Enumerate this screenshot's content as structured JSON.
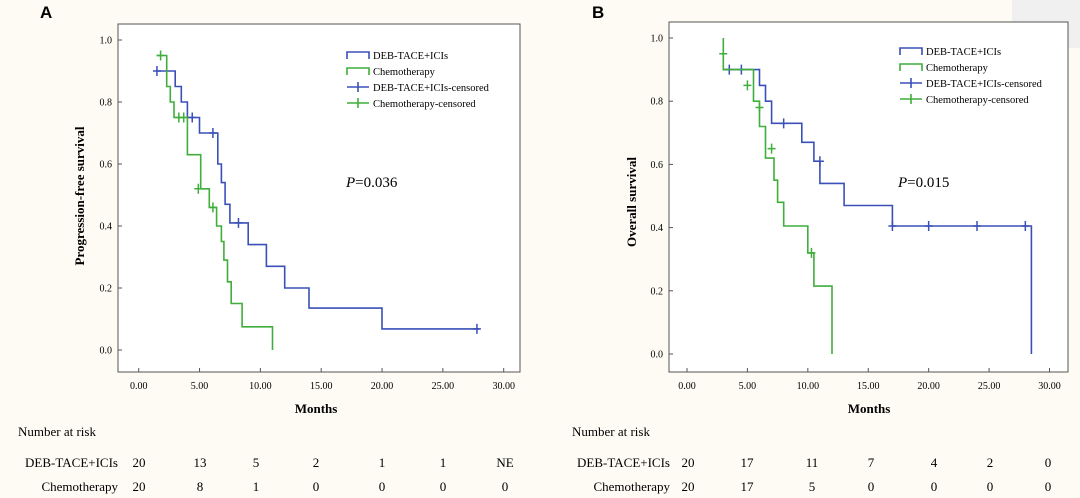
{
  "chart_data": [
    {
      "type": "line",
      "panel_label": "A",
      "ylabel": "Progression-free survival",
      "xlabel": "Months",
      "x_ticks": [
        "0.00",
        "5.00",
        "10.00",
        "15.00",
        "20.00",
        "25.00",
        "30.00"
      ],
      "y_ticks": [
        "0.0",
        "0.2",
        "0.4",
        "0.6",
        "0.8",
        "1.0"
      ],
      "xlim": [
        -1,
        31
      ],
      "ylim": [
        0,
        1
      ],
      "p_prefix": "P",
      "p_value": "=0.036",
      "legend_position": "top-right",
      "series": [
        {
          "name": "DEB-TACE+ICIs",
          "color": "#3a50b8",
          "curve": [
            [
              1.5,
              0.9
            ],
            [
              3,
              0.9
            ],
            [
              3,
              0.85
            ],
            [
              3.5,
              0.85
            ],
            [
              3.5,
              0.8
            ],
            [
              4,
              0.8
            ],
            [
              4,
              0.75
            ],
            [
              5,
              0.75
            ],
            [
              5,
              0.7
            ],
            [
              6.5,
              0.7
            ],
            [
              6.5,
              0.6
            ],
            [
              6.8,
              0.6
            ],
            [
              6.8,
              0.54
            ],
            [
              7.1,
              0.54
            ],
            [
              7.1,
              0.47
            ],
            [
              7.5,
              0.47
            ],
            [
              7.5,
              0.41
            ],
            [
              9,
              0.41
            ],
            [
              9,
              0.34
            ],
            [
              10.5,
              0.34
            ],
            [
              10.5,
              0.27
            ],
            [
              12,
              0.27
            ],
            [
              12,
              0.2
            ],
            [
              14,
              0.2
            ],
            [
              14,
              0.135
            ],
            [
              20,
              0.135
            ],
            [
              20,
              0.068
            ],
            [
              28,
              0.068
            ]
          ],
          "censored": [
            [
              1.5,
              0.9
            ],
            [
              4.4,
              0.75
            ],
            [
              6.1,
              0.7
            ],
            [
              8.2,
              0.41
            ],
            [
              27.8,
              0.068
            ]
          ]
        },
        {
          "name": "Chemotherapy",
          "color": "#3fae3a",
          "curve": [
            [
              1.5,
              0.95
            ],
            [
              2.3,
              0.95
            ],
            [
              2.3,
              0.85
            ],
            [
              2.6,
              0.85
            ],
            [
              2.6,
              0.8
            ],
            [
              2.9,
              0.8
            ],
            [
              2.9,
              0.75
            ],
            [
              4,
              0.75
            ],
            [
              4,
              0.63
            ],
            [
              5.1,
              0.63
            ],
            [
              5.1,
              0.52
            ],
            [
              5.8,
              0.52
            ],
            [
              5.8,
              0.46
            ],
            [
              6.4,
              0.46
            ],
            [
              6.4,
              0.4
            ],
            [
              6.8,
              0.4
            ],
            [
              6.8,
              0.35
            ],
            [
              7,
              0.35
            ],
            [
              7,
              0.29
            ],
            [
              7.3,
              0.29
            ],
            [
              7.3,
              0.22
            ],
            [
              7.6,
              0.22
            ],
            [
              7.6,
              0.15
            ],
            [
              8.5,
              0.15
            ],
            [
              8.5,
              0.075
            ],
            [
              11,
              0.075
            ],
            [
              11,
              0
            ]
          ],
          "censored": [
            [
              1.8,
              0.95
            ],
            [
              3.3,
              0.75
            ],
            [
              3.7,
              0.75
            ],
            [
              4.9,
              0.52
            ],
            [
              6.1,
              0.46
            ]
          ]
        }
      ],
      "legend": [
        "DEB-TACE+ICIs",
        "Chemotherapy",
        "DEB-TACE+ICIs-censored",
        "Chemotherapy-censored"
      ],
      "risk_table": {
        "title": "Number at risk",
        "rows": [
          {
            "label": "DEB-TACE+ICIs",
            "values": [
              "20",
              "13",
              "5",
              "2",
              "1",
              "1",
              "NE"
            ]
          },
          {
            "label": "Chemotherapy",
            "values": [
              "20",
              "8",
              "1",
              "0",
              "0",
              "0",
              "0"
            ]
          }
        ]
      }
    },
    {
      "type": "line",
      "panel_label": "B",
      "ylabel": "Overall survival",
      "xlabel": "Months",
      "x_ticks": [
        "0.00",
        "5.00",
        "10.00",
        "15.00",
        "20.00",
        "25.00",
        "30.00"
      ],
      "y_ticks": [
        "0.0",
        "0.2",
        "0.4",
        "0.6",
        "0.8",
        "1.0"
      ],
      "xlim": [
        -1,
        31
      ],
      "ylim": [
        0,
        1
      ],
      "p_prefix": "P",
      "p_value": "=0.015",
      "legend_position": "top-right",
      "series": [
        {
          "name": "DEB-TACE+ICIs",
          "color": "#3a50b8",
          "curve": [
            [
              3,
              0.9
            ],
            [
              6,
              0.9
            ],
            [
              6,
              0.85
            ],
            [
              6.5,
              0.85
            ],
            [
              6.5,
              0.8
            ],
            [
              7,
              0.8
            ],
            [
              7,
              0.73
            ],
            [
              9.5,
              0.73
            ],
            [
              9.5,
              0.67
            ],
            [
              10.5,
              0.67
            ],
            [
              10.5,
              0.61
            ],
            [
              11,
              0.61
            ],
            [
              11,
              0.54
            ],
            [
              13,
              0.54
            ],
            [
              13,
              0.47
            ],
            [
              17,
              0.47
            ],
            [
              17,
              0.405
            ],
            [
              28.5,
              0.405
            ],
            [
              28.5,
              0
            ]
          ],
          "censored": [
            [
              3.5,
              0.9
            ],
            [
              4.5,
              0.9
            ],
            [
              8,
              0.73
            ],
            [
              11,
              0.61
            ],
            [
              17,
              0.405
            ],
            [
              20,
              0.405
            ],
            [
              24,
              0.405
            ],
            [
              28,
              0.405
            ]
          ]
        },
        {
          "name": "Chemotherapy",
          "color": "#3fae3a",
          "curve": [
            [
              3,
              1
            ],
            [
              3,
              0.9
            ],
            [
              5.5,
              0.9
            ],
            [
              5.5,
              0.8
            ],
            [
              6,
              0.8
            ],
            [
              6,
              0.72
            ],
            [
              6.5,
              0.72
            ],
            [
              6.5,
              0.62
            ],
            [
              7.2,
              0.62
            ],
            [
              7.2,
              0.55
            ],
            [
              7.5,
              0.55
            ],
            [
              7.5,
              0.48
            ],
            [
              8,
              0.48
            ],
            [
              8,
              0.405
            ],
            [
              10,
              0.405
            ],
            [
              10,
              0.32
            ],
            [
              10.5,
              0.32
            ],
            [
              10.5,
              0.215
            ],
            [
              12,
              0.215
            ],
            [
              12,
              0
            ]
          ],
          "censored": [
            [
              3,
              0.95
            ],
            [
              5,
              0.85
            ],
            [
              6,
              0.78
            ],
            [
              7,
              0.65
            ],
            [
              10.3,
              0.32
            ]
          ]
        }
      ],
      "legend": [
        "DEB-TACE+ICIs",
        "Chemotherapy",
        "DEB-TACE+ICIs-censored",
        "Chemotherapy-censored"
      ],
      "risk_table": {
        "title": "Number at risk",
        "rows": [
          {
            "label": "DEB-TACE+ICIs",
            "values": [
              "20",
              "17",
              "11",
              "7",
              "4",
              "2",
              "0"
            ]
          },
          {
            "label": "Chemotherapy",
            "values": [
              "20",
              "17",
              "5",
              "0",
              "0",
              "0",
              "0"
            ]
          }
        ]
      }
    }
  ]
}
